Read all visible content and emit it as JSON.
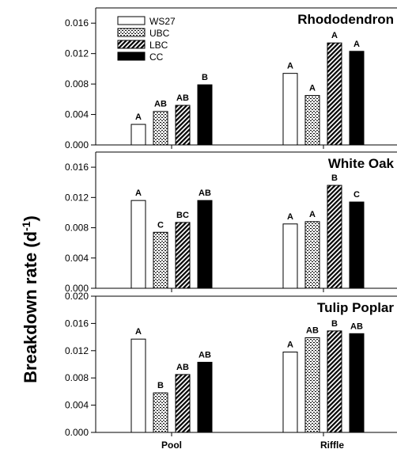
{
  "chart_data": {
    "type": "bar",
    "ylabel": "Breakdown rate (d",
    "ylabel_sup": "-1",
    "ylabel_close": ")",
    "categories": [
      "Pool",
      "Riffle"
    ],
    "legend": {
      "placement": "top-left",
      "entries": [
        {
          "name": "WS27",
          "pattern": "white"
        },
        {
          "name": "UBC",
          "pattern": "dotted"
        },
        {
          "name": "LBC",
          "pattern": "hatched"
        },
        {
          "name": "CC",
          "pattern": "black"
        }
      ]
    },
    "panels": [
      {
        "title": "Rhododendron",
        "ylim": [
          0,
          0.018
        ],
        "yticks": [
          "0.000",
          "0.004",
          "0.008",
          "0.012",
          "0.016"
        ],
        "series": [
          {
            "name": "WS27",
            "values": [
              0.0027,
              0.0094
            ],
            "labels": [
              "A",
              "A"
            ]
          },
          {
            "name": "UBC",
            "values": [
              0.0044,
              0.0065
            ],
            "labels": [
              "AB",
              "A"
            ]
          },
          {
            "name": "LBC",
            "values": [
              0.0052,
              0.0134
            ],
            "labels": [
              "AB",
              "A"
            ]
          },
          {
            "name": "CC",
            "values": [
              0.0079,
              0.0123
            ],
            "labels": [
              "B",
              "A"
            ]
          }
        ]
      },
      {
        "title": "White Oak",
        "ylim": [
          0,
          0.018
        ],
        "yticks": [
          "0.000",
          "0.004",
          "0.008",
          "0.012",
          "0.016"
        ],
        "series": [
          {
            "name": "WS27",
            "values": [
              0.0116,
              0.0085
            ],
            "labels": [
              "A",
              "A"
            ]
          },
          {
            "name": "UBC",
            "values": [
              0.0074,
              0.0088
            ],
            "labels": [
              "C",
              "A"
            ]
          },
          {
            "name": "LBC",
            "values": [
              0.0087,
              0.0136
            ],
            "labels": [
              "BC",
              "B"
            ]
          },
          {
            "name": "CC",
            "values": [
              0.0116,
              0.0114
            ],
            "labels": [
              "AB",
              "C"
            ]
          }
        ]
      },
      {
        "title": "Tulip Poplar",
        "ylim": [
          0,
          0.02
        ],
        "yticks": [
          "0.000",
          "0.004",
          "0.008",
          "0.012",
          "0.016",
          "0.020"
        ],
        "series": [
          {
            "name": "WS27",
            "values": [
              0.0137,
              0.0118
            ],
            "labels": [
              "A",
              "A"
            ]
          },
          {
            "name": "UBC",
            "values": [
              0.0058,
              0.0139
            ],
            "labels": [
              "B",
              "AB"
            ]
          },
          {
            "name": "LBC",
            "values": [
              0.0085,
              0.0149
            ],
            "labels": [
              "AB",
              "B"
            ]
          },
          {
            "name": "CC",
            "values": [
              0.0103,
              0.0145
            ],
            "labels": [
              "AB",
              "AB"
            ]
          }
        ]
      }
    ]
  }
}
